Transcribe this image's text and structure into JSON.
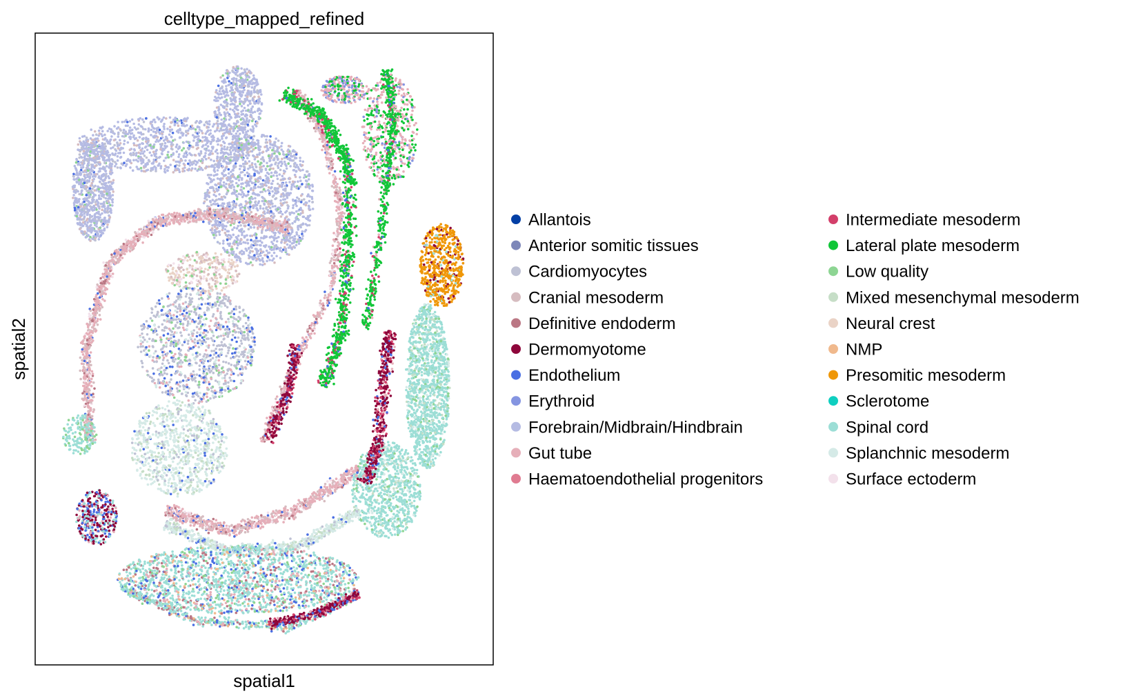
{
  "chart_data": {
    "type": "scatter",
    "title": "celltype_mapped_refined",
    "xlabel": "spatial1",
    "ylabel": "spatial2",
    "xticks": [],
    "yticks": [],
    "grid": false,
    "legend_placement": "right",
    "legend_columns": 2,
    "series": [
      {
        "name": "Allantois",
        "color": "#023fa5"
      },
      {
        "name": "Anterior somitic tissues",
        "color": "#7d87b9"
      },
      {
        "name": "Cardiomyocytes",
        "color": "#bec1d4"
      },
      {
        "name": "Cranial mesoderm",
        "color": "#d6bcc0"
      },
      {
        "name": "Definitive endoderm",
        "color": "#bb7784"
      },
      {
        "name": "Dermomyotome",
        "color": "#8e063b"
      },
      {
        "name": "Endothelium",
        "color": "#4a6fe3"
      },
      {
        "name": "Erythroid",
        "color": "#8595e1"
      },
      {
        "name": "Forebrain/Midbrain/Hindbrain",
        "color": "#b5bbe3"
      },
      {
        "name": "Gut tube",
        "color": "#e6afb9"
      },
      {
        "name": "Haematoendothelial progenitors",
        "color": "#e07b91"
      },
      {
        "name": "Intermediate mesoderm",
        "color": "#d33f6a"
      },
      {
        "name": "Lateral plate mesoderm",
        "color": "#11c638"
      },
      {
        "name": "Low quality",
        "color": "#8dd593"
      },
      {
        "name": "Mixed mesenchymal mesoderm",
        "color": "#c6dec7"
      },
      {
        "name": "Neural crest",
        "color": "#ead3c6"
      },
      {
        "name": "NMP",
        "color": "#f0b98d"
      },
      {
        "name": "Presomitic mesoderm",
        "color": "#ef9708"
      },
      {
        "name": "Sclerotome",
        "color": "#0fcfc0"
      },
      {
        "name": "Spinal cord",
        "color": "#9cded6"
      },
      {
        "name": "Splanchnic mesoderm",
        "color": "#d5eae7"
      },
      {
        "name": "Surface ectoderm",
        "color": "#f3e1eb"
      }
    ]
  }
}
